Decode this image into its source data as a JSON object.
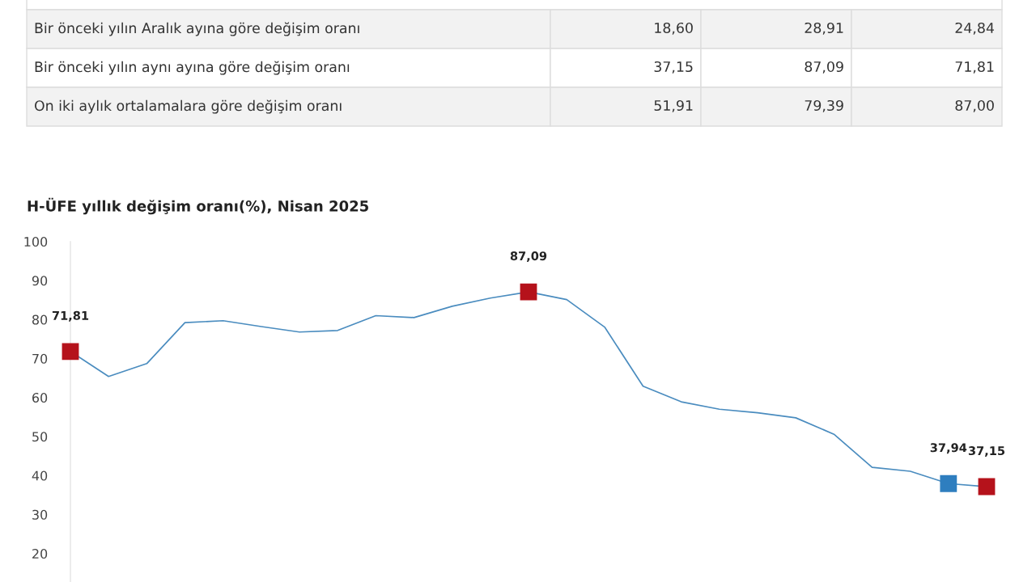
{
  "chart_data": [
    {
      "type": "other",
      "annotations": [
        "Bir önceki yılın Aralık ayına göre değişim oranı",
        "18,60",
        "28,91",
        "24,84",
        "Bir önceki yılın aynı ayına göre değişim oranı",
        "37,15",
        "87,09",
        "71,81",
        "On iki aylık ortalamalara göre değişim oranı",
        "51,91",
        "79,39",
        "87,00"
      ]
    },
    {
      "type": "line",
      "title": "H-ÜFE yıllık değişim oranı(%), Nisan 2025",
      "categories": [
        null,
        null,
        null,
        null,
        null,
        null,
        null,
        null,
        null,
        null,
        null,
        null,
        null,
        null,
        null,
        null,
        null,
        null,
        null,
        null,
        null,
        null,
        null,
        null,
        null
      ],
      "series": [
        {
          "color": "#4a8cbf",
          "values": [
            71.81,
            65.4,
            68.7,
            79.2,
            79.7,
            78.2,
            76.8,
            77.2,
            81.0,
            80.5,
            83.4,
            85.5,
            87.09,
            85.1,
            78.0,
            62.9,
            58.9,
            57.0,
            56.1,
            54.8,
            50.6,
            42.1,
            41.1,
            37.94,
            37.15
          ],
          "colors": [
            "#b5121b",
            null,
            null,
            null,
            null,
            null,
            null,
            null,
            null,
            null,
            null,
            null,
            "#b5121b",
            null,
            null,
            null,
            null,
            null,
            null,
            null,
            null,
            null,
            null,
            "#2e7ebf",
            "#b5121b"
          ],
          "value_labels": [
            "71,81",
            null,
            null,
            null,
            null,
            null,
            null,
            null,
            null,
            null,
            null,
            null,
            "87,09",
            null,
            null,
            null,
            null,
            null,
            null,
            null,
            null,
            null,
            null,
            "37,94",
            "37,15"
          ]
        }
      ],
      "line_style": "solid",
      "ylim": [
        12.7,
        100
      ],
      "yticks": [
        20,
        30,
        40,
        50,
        60,
        70,
        80,
        90,
        100
      ],
      "tick_labels": "y",
      "grid": false,
      "legend": false
    }
  ]
}
